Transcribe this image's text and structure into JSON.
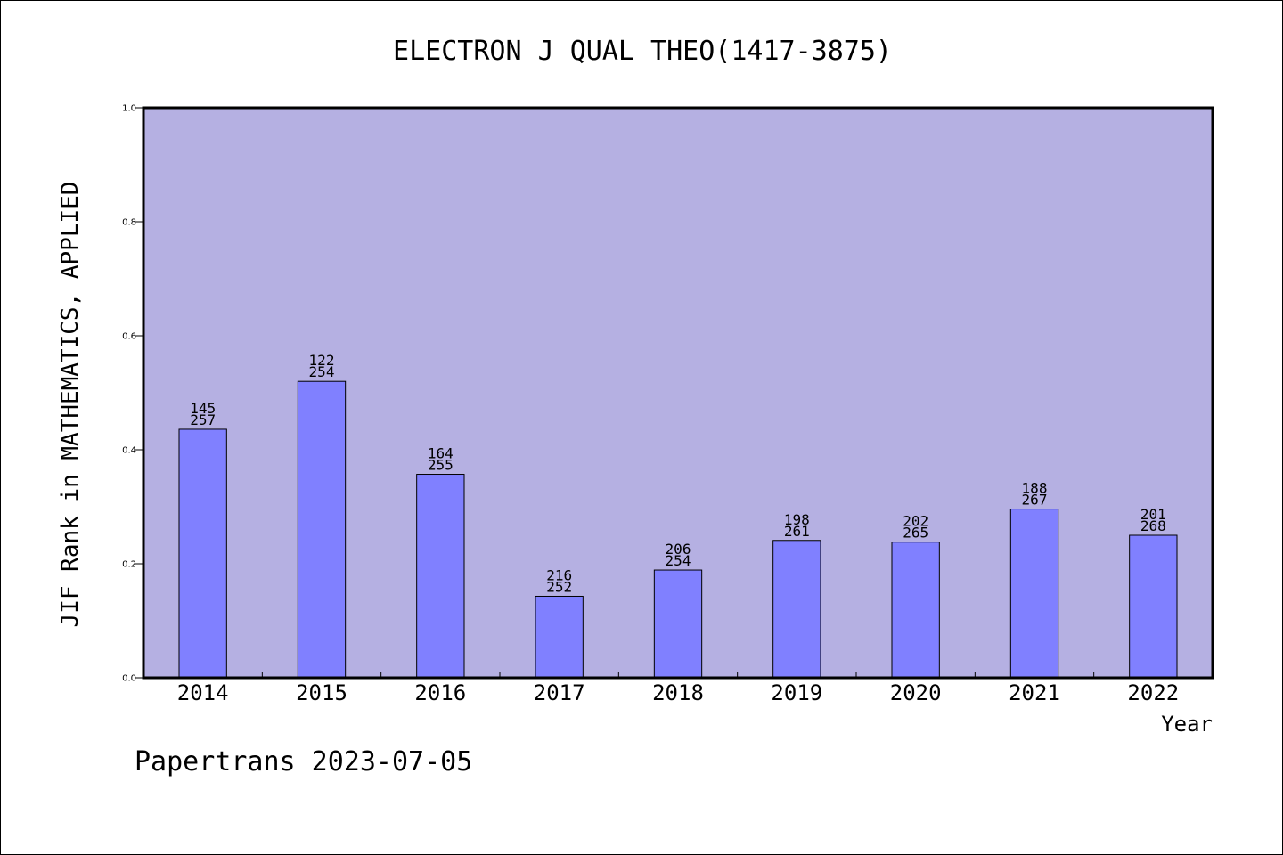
{
  "chart_data": {
    "type": "bar",
    "title": "ELECTRON J QUAL THEO(1417-3875)",
    "xlabel": "Year",
    "ylabel": "JIF Rank in MATHEMATICS, APPLIED",
    "ylim": [
      0.0,
      1.0
    ],
    "yticks": [
      "0.0",
      "0.2",
      "0.4",
      "0.6",
      "0.8",
      "1.0"
    ],
    "grid": false,
    "categories": [
      "2014",
      "2015",
      "2016",
      "2017",
      "2018",
      "2019",
      "2020",
      "2021",
      "2022"
    ],
    "values": [
      0.436,
      0.52,
      0.357,
      0.143,
      0.189,
      0.241,
      0.238,
      0.296,
      0.25
    ],
    "rank_labels": [
      "145",
      "122",
      "164",
      "216",
      "206",
      "198",
      "202",
      "188",
      "201"
    ],
    "total_labels": [
      "257",
      "254",
      "255",
      "252",
      "254",
      "261",
      "265",
      "267",
      "268"
    ],
    "colors": {
      "plot_background": "#b5b0e2",
      "bar_fill": "#8080ff",
      "bar_stroke": "#000000"
    }
  },
  "footer": "Papertrans 2023-07-05"
}
